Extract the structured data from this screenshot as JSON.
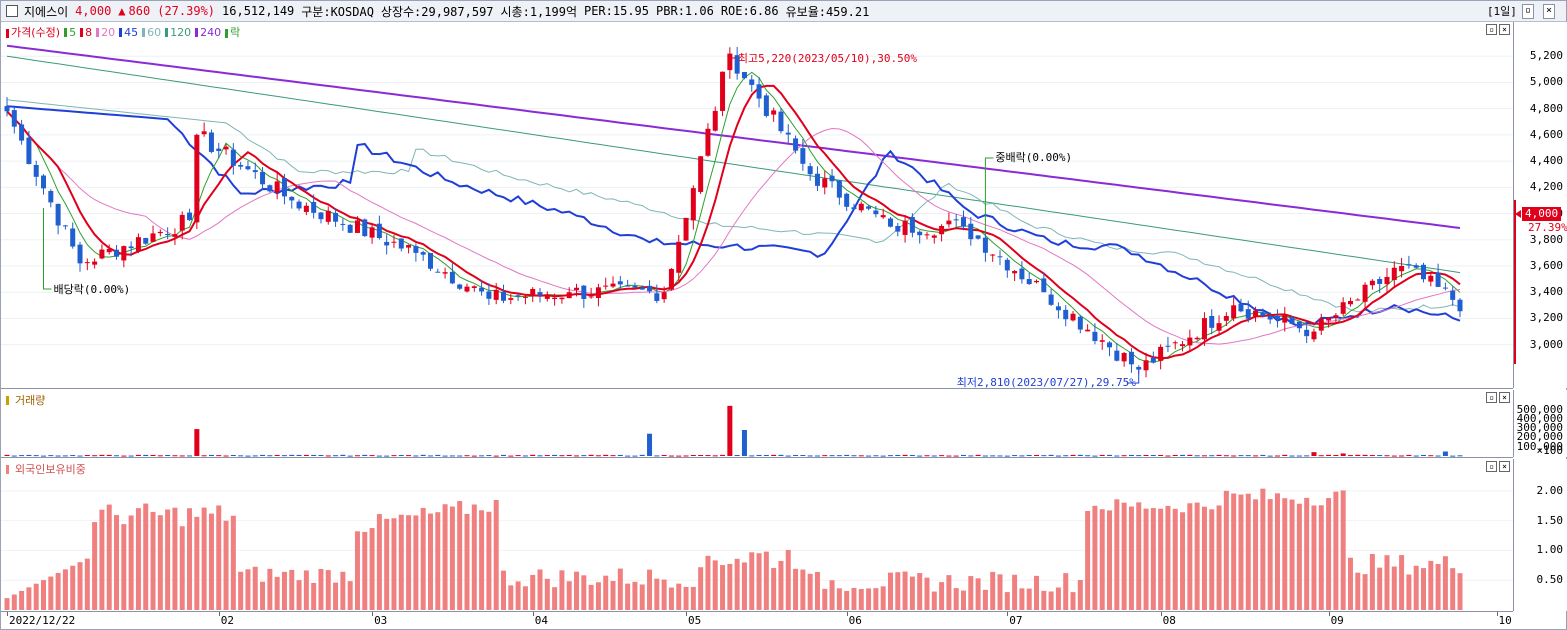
{
  "header": {
    "name": "지에스이",
    "price": "4,000",
    "change_arrow": "▲",
    "change": "860",
    "change_pct": "(27.39%)",
    "volume": "16,512,149",
    "market": "구분:KOSDAQ",
    "shares": "상장수:29,987,597",
    "mcap": "시총:1,199억",
    "per": "PER:15.95",
    "pbr": "PBR:1.06",
    "roe": "ROE:6.86",
    "reserve": "유보율:459.21",
    "period": "[1일]"
  },
  "price_pane": {
    "legend": [
      {
        "label": "가격(수정)",
        "color": "#e0001b"
      },
      {
        "label": "5",
        "color": "#2ca02c"
      },
      {
        "label": "8",
        "color": "#e0001b"
      },
      {
        "label": "20",
        "color": "#e377c2"
      },
      {
        "label": "45",
        "color": "#1f3fd6"
      },
      {
        "label": "60",
        "color": "#7fb5b5"
      },
      {
        "label": "120",
        "color": "#3a9a7a"
      },
      {
        "label": "240",
        "color": "#8a2bd6"
      },
      {
        "label": "락",
        "color": "#2ca02c"
      }
    ],
    "annotations": {
      "high": "최고5,220(2023/05/10),30.50%",
      "low": "최저2,810(2023/07/27),29.75%",
      "dividend": "배당락(0.00%)",
      "midrak": "중배락(0.00%)"
    },
    "current_price_label": "4,000",
    "current_pct_label": "27.39%"
  },
  "volume_pane": {
    "legend": "거래량",
    "unit": "×100",
    "ticks": [
      "500,000",
      "400,000",
      "300,000",
      "200,000",
      "100,000"
    ]
  },
  "foreign_pane": {
    "legend": "외국인보유비중",
    "ticks": [
      "2.00",
      "1.50",
      "1.00",
      "0.50"
    ]
  },
  "x_axis": {
    "labels": [
      "2022/12/22",
      "02",
      "03",
      "04",
      "05",
      "06",
      "07",
      "08",
      "09",
      "10"
    ]
  },
  "colors": {
    "up": "#e0001b",
    "down": "#1f5fd0",
    "ratio": "#f08080"
  },
  "chart_data": [
    {
      "type": "candlestick",
      "title": "가격(수정)",
      "y_ticks": [
        "5,200",
        "5,000",
        "4,800",
        "4,600",
        "4,400",
        "4,200",
        "4,000",
        "3,800",
        "3,600",
        "3,400",
        "3,200",
        "3,000"
      ],
      "ylim": [
        2700,
        5400
      ],
      "x_labels": [
        "2022/12/22",
        "02",
        "03",
        "04",
        "05",
        "06",
        "07",
        "08",
        "09",
        "10"
      ],
      "key_points": [
        {
          "date": "2022/12/22",
          "close": 4780
        },
        {
          "date": "2023/01/05",
          "close": 3620
        },
        {
          "date": "2023/01/26",
          "close": 3950
        },
        {
          "date": "2023/01/27",
          "close": 4600
        },
        {
          "date": "2023/02/15",
          "close": 4100
        },
        {
          "date": "2023/03/10",
          "close": 3700
        },
        {
          "date": "2023/03/25",
          "close": 3350
        },
        {
          "date": "2023/04/10",
          "close": 3400
        },
        {
          "date": "2023/04/27",
          "close": 3400
        },
        {
          "date": "2023/05/10",
          "close": 5220
        },
        {
          "date": "2023/05/25",
          "close": 4300
        },
        {
          "date": "2023/06/10",
          "close": 3900
        },
        {
          "date": "2023/06/25",
          "close": 3900
        },
        {
          "date": "2023/07/10",
          "close": 3400
        },
        {
          "date": "2023/07/27",
          "close": 2810
        },
        {
          "date": "2023/08/15",
          "close": 3300
        },
        {
          "date": "2023/08/30",
          "close": 3100
        },
        {
          "date": "2023/09/15",
          "close": 3600
        },
        {
          "date": "2023/10/05",
          "close": 3100
        },
        {
          "date": "2023/10/10",
          "close": 4000
        }
      ],
      "moving_averages": [
        {
          "name": "240",
          "start": 5280,
          "end": 3890
        },
        {
          "name": "120",
          "start": 5200,
          "end": 3550
        },
        {
          "name": "60",
          "start": 4900,
          "end": 3300
        },
        {
          "name": "45",
          "start": 4850,
          "end": 3230
        }
      ]
    },
    {
      "type": "bar",
      "title": "거래량",
      "unit": "×100",
      "y_ticks": [
        "500,000",
        "400,000",
        "300,000",
        "200,000",
        "100,000"
      ],
      "notable": [
        {
          "date": "2023/01/27",
          "value": 290000
        },
        {
          "date": "2023/04/25",
          "value": 240000
        },
        {
          "date": "2023/05/10",
          "value": 540000
        },
        {
          "date": "2023/05/12",
          "value": 280000
        },
        {
          "date": "2023/10/10",
          "value": 165000
        }
      ]
    },
    {
      "type": "bar",
      "title": "외국인보유비중",
      "y_ticks": [
        "2.00",
        "1.50",
        "1.00",
        "0.50"
      ],
      "ylim": [
        0,
        2.3
      ],
      "range": [
        0.05,
        2.1
      ]
    }
  ]
}
